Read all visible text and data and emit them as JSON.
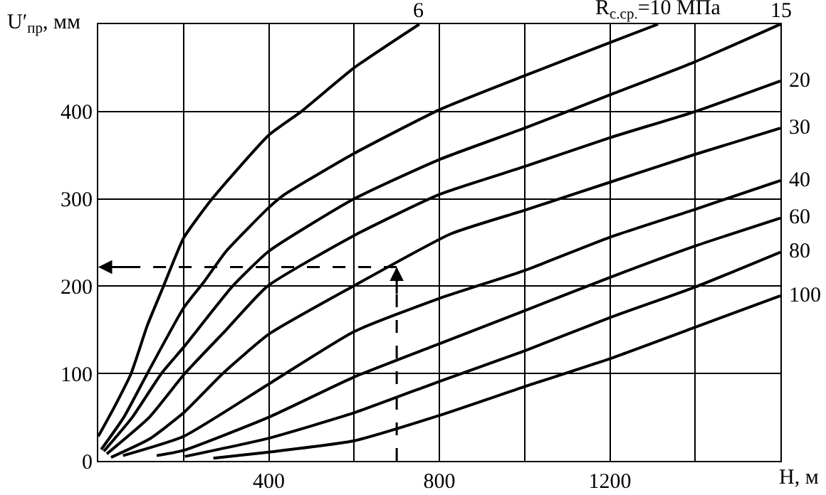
{
  "chart_data": {
    "type": "line",
    "xlabel": "H, м",
    "ylabel": "U′$_{пр}$, мм",
    "xlim": [
      0,
      1600
    ],
    "ylim": [
      0,
      500
    ],
    "xticks": [
      {
        "value": 0,
        "label": null
      },
      {
        "value": 200,
        "label": null
      },
      400,
      {
        "value": 600,
        "label": null
      },
      800,
      {
        "value": 1000,
        "label": null
      },
      1200,
      {
        "value": 1400,
        "label": null
      },
      {
        "value": 1600,
        "label": null
      }
    ],
    "yticks": [
      0,
      100,
      200,
      300,
      400
    ],
    "grid": true,
    "legend": false,
    "marker": "none",
    "line_style": "solid",
    "ref_lines": [
      {
        "axis": "x",
        "value": 700,
        "line_style": "dashed"
      },
      {
        "axis": "y",
        "value": 222,
        "line_style": "dashed"
      }
    ],
    "series": [
      {
        "name": "6",
        "color": "#000000",
        "x": [
          0,
          37,
          77,
          115,
          153,
          200,
          267,
          400,
          476,
          600,
          753
        ],
        "values": [
          28,
          61,
          100,
          155,
          200,
          255,
          300,
          373,
          400,
          450,
          500
        ]
      },
      {
        "name": "R$_{с.ср.}$=10 МПа",
        "color": "#000000",
        "x": [
          7,
          60,
          115,
          200,
          248,
          300,
          400,
          437,
          600,
          800,
          1000,
          1200,
          1313
        ],
        "values": [
          13,
          50,
          100,
          175,
          205,
          240,
          290,
          305,
          352,
          402,
          441,
          479,
          500
        ]
      },
      {
        "name": "15",
        "color": "#000000",
        "x": [
          13,
          80,
          148,
          200,
          315,
          400,
          600,
          800,
          1000,
          1200,
          1400,
          1600
        ],
        "values": [
          11,
          50,
          100,
          130,
          200,
          240,
          300,
          345,
          381,
          419,
          457,
          500
        ]
      },
      {
        "name": "20",
        "color": "#000000",
        "x": [
          20,
          120,
          203,
          300,
          397,
          600,
          800,
          1000,
          1200,
          1400,
          1600
        ],
        "values": [
          8,
          50,
          100,
          150,
          200,
          258,
          305,
          337,
          370,
          400,
          435
        ]
      },
      {
        "name": "30",
        "color": "#000000",
        "x": [
          30,
          120,
          200,
          292,
          400,
          598,
          827,
          1000,
          1200,
          1400,
          1600
        ],
        "values": [
          4,
          25,
          55,
          100,
          145,
          200,
          260,
          287,
          319,
          351,
          381
        ]
      },
      {
        "name": "40",
        "color": "#000000",
        "x": [
          58,
          200,
          400,
          600,
          800,
          1000,
          1200,
          1400,
          1600
        ],
        "values": [
          6,
          28,
          88,
          148,
          186,
          218,
          256,
          288,
          321
        ]
      },
      {
        "name": "60",
        "color": "#000000",
        "x": [
          137,
          200,
          400,
          600,
          800,
          1000,
          1200,
          1400,
          1600
        ],
        "values": [
          6,
          12,
          50,
          96,
          134,
          172,
          210,
          246,
          278
        ]
      },
      {
        "name": "80",
        "color": "#000000",
        "x": [
          203,
          400,
          600,
          800,
          1000,
          1200,
          1400,
          1600
        ],
        "values": [
          5,
          26,
          55,
          91,
          126,
          164,
          199,
          239
        ]
      },
      {
        "name": "100",
        "color": "#000000",
        "x": [
          270,
          400,
          600,
          800,
          1000,
          1200,
          1400,
          1600
        ],
        "values": [
          3,
          10,
          23,
          52,
          85,
          117,
          153,
          189
        ]
      }
    ]
  }
}
